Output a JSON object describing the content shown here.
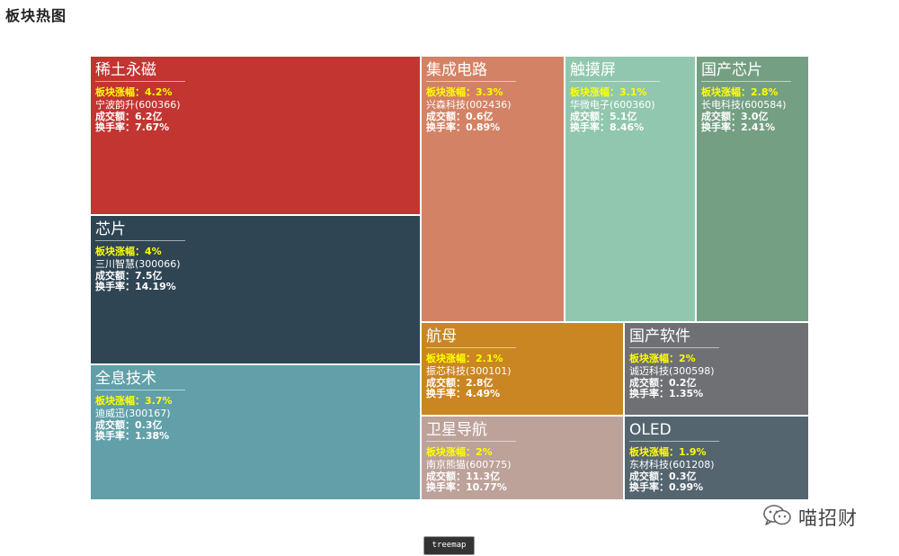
{
  "page": {
    "title": "板块热图",
    "legend_label": "treemap",
    "watermark_text": "喵招财",
    "watermark_icon": "wechat-icon"
  },
  "chart_data": {
    "type": "treemap",
    "size_metric": "板块涨幅",
    "labels": {
      "change": "板块涨幅：",
      "turnover_amount": "成交额：",
      "turnover_rate": "换手率："
    },
    "items": [
      {
        "name": "稀土永磁",
        "change": "4.2%",
        "change_value": 4.2,
        "stock": "宁波韵升(600366)",
        "amount": "6.2亿",
        "rate": "7.67%",
        "color": "#c23531"
      },
      {
        "name": "芯片",
        "change": "4%",
        "change_value": 4.0,
        "stock": "三川智慧(300066)",
        "amount": "7.5亿",
        "rate": "14.19%",
        "color": "#2f4554"
      },
      {
        "name": "全息技术",
        "change": "3.7%",
        "change_value": 3.7,
        "stock": "迪威迅(300167)",
        "amount": "0.3亿",
        "rate": "1.38%",
        "color": "#61a0a8"
      },
      {
        "name": "集成电路",
        "change": "3.3%",
        "change_value": 3.3,
        "stock": "兴森科技(002436)",
        "amount": "0.6亿",
        "rate": "0.89%",
        "color": "#d48265"
      },
      {
        "name": "触摸屏",
        "change": "3.1%",
        "change_value": 3.1,
        "stock": "华微电子(600360)",
        "amount": "5.1亿",
        "rate": "8.46%",
        "color": "#91c7ae"
      },
      {
        "name": "国产芯片",
        "change": "2.8%",
        "change_value": 2.8,
        "stock": "长电科技(600584)",
        "amount": "3.0亿",
        "rate": "2.41%",
        "color": "#749f83"
      },
      {
        "name": "航母",
        "change": "2.1%",
        "change_value": 2.1,
        "stock": "振芯科技(300101)",
        "amount": "2.8亿",
        "rate": "4.49%",
        "color": "#ca8622"
      },
      {
        "name": "国产软件",
        "change": "2%",
        "change_value": 2.0,
        "stock": "诚迈科技(300598)",
        "amount": "0.2亿",
        "rate": "1.35%",
        "color": "#6e7074"
      },
      {
        "name": "卫星导航",
        "change": "2%",
        "change_value": 2.0,
        "stock": "南京熊猫(600775)",
        "amount": "11.3亿",
        "rate": "10.77%",
        "color": "#bda29a"
      },
      {
        "name": "OLED",
        "change": "1.9%",
        "change_value": 1.9,
        "stock": "东材科技(601208)",
        "amount": "0.3亿",
        "rate": "0.99%",
        "color": "#546570"
      }
    ]
  }
}
